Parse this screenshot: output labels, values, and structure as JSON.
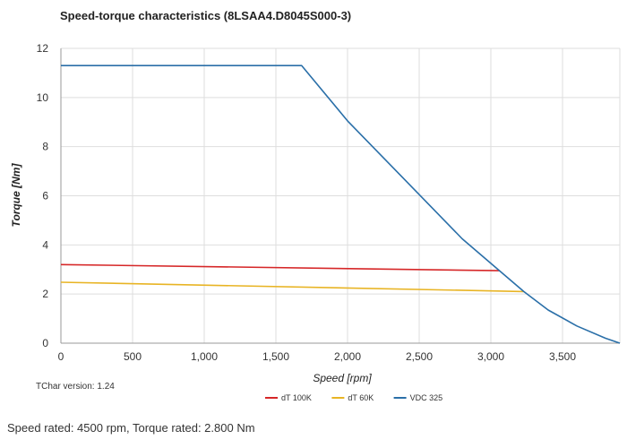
{
  "chart_data": {
    "type": "line",
    "title": "Speed-torque characteristics (8LSAA4.D8045S000-3)",
    "xlabel": "Speed [rpm]",
    "ylabel": "Torque [Nm]",
    "xlim": [
      0,
      3900
    ],
    "ylim": [
      0,
      12
    ],
    "xticks": [
      0,
      500,
      1000,
      1500,
      2000,
      2500,
      3000,
      3500
    ],
    "xtick_labels": [
      "0",
      "500",
      "1,000",
      "1,500",
      "2,000",
      "2,500",
      "3,000",
      "3,500"
    ],
    "yticks": [
      0,
      2,
      4,
      6,
      8,
      10,
      12
    ],
    "ytick_labels": [
      "0",
      "2",
      "4",
      "6",
      "8",
      "10",
      "12"
    ],
    "grid": true,
    "legend_position": "bottom-center",
    "series": [
      {
        "name": "dT 100K",
        "color": "#d62728",
        "x": [
          0,
          3060
        ],
        "y": [
          3.2,
          2.95
        ]
      },
      {
        "name": "dT 60K",
        "color": "#e8b424",
        "x": [
          0,
          3230
        ],
        "y": [
          2.48,
          2.1
        ]
      },
      {
        "name": "VDC 325",
        "color": "#2a6fa8",
        "x": [
          0,
          1680,
          2000,
          2400,
          2800,
          3060,
          3230,
          3400,
          3600,
          3800,
          3900
        ],
        "y": [
          11.3,
          11.3,
          9.05,
          6.65,
          4.25,
          2.95,
          2.1,
          1.35,
          0.7,
          0.2,
          0.0
        ]
      }
    ]
  },
  "note": "TChar version: 1.24",
  "footer": "Speed rated: 4500 rpm, Torque rated: 2.800 Nm"
}
